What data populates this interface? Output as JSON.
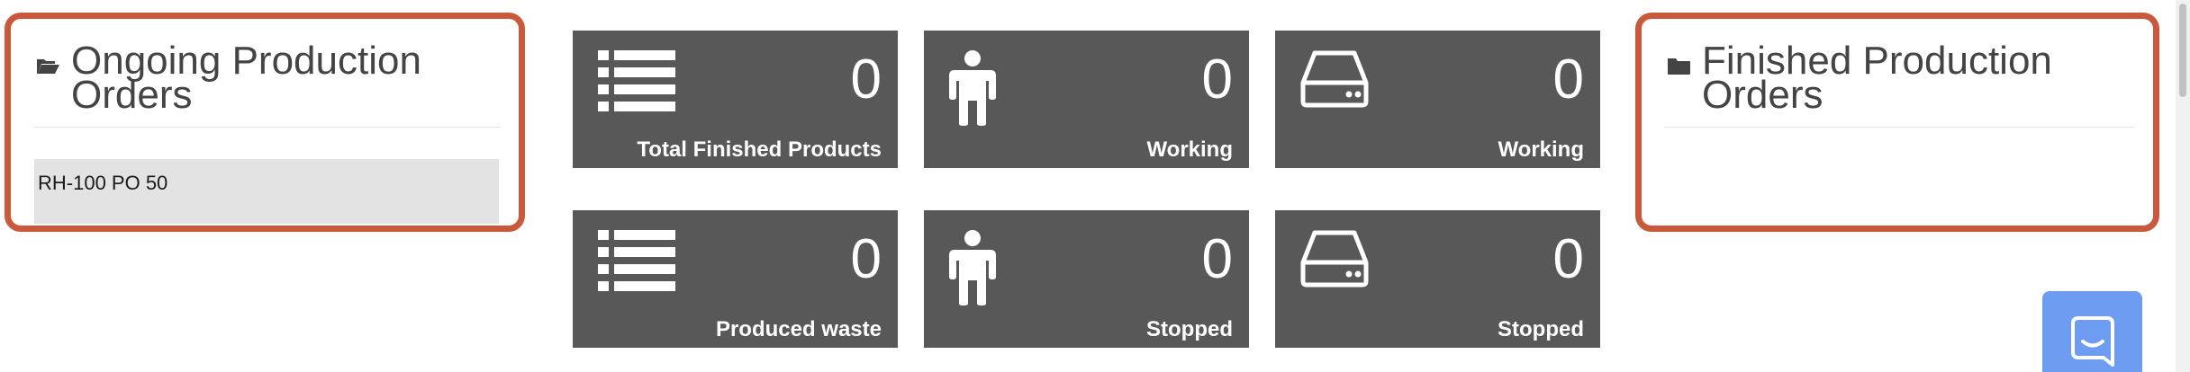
{
  "ongoing": {
    "title": "Ongoing Production Orders",
    "icon": "folder-open-icon",
    "orders": [
      "RH-100 PO 50"
    ]
  },
  "finished": {
    "title": "Finished Production Orders",
    "icon": "folder-closed-icon",
    "orders": []
  },
  "tiles": [
    {
      "value": "0",
      "label": "Total Finished Products",
      "icon": "list-icon"
    },
    {
      "value": "0",
      "label": "Working",
      "icon": "person-icon"
    },
    {
      "value": "0",
      "label": "Working",
      "icon": "drive-icon"
    },
    {
      "value": "0",
      "label": "Produced waste",
      "icon": "list-icon"
    },
    {
      "value": "0",
      "label": "Stopped",
      "icon": "person-icon"
    },
    {
      "value": "0",
      "label": "Stopped",
      "icon": "drive-icon"
    }
  ],
  "colors": {
    "highlight_border": "#c9593a",
    "tile_background": "#585858",
    "chat_button": "#6e9cf0"
  },
  "chat": {
    "icon": "chat-bubble-icon"
  }
}
